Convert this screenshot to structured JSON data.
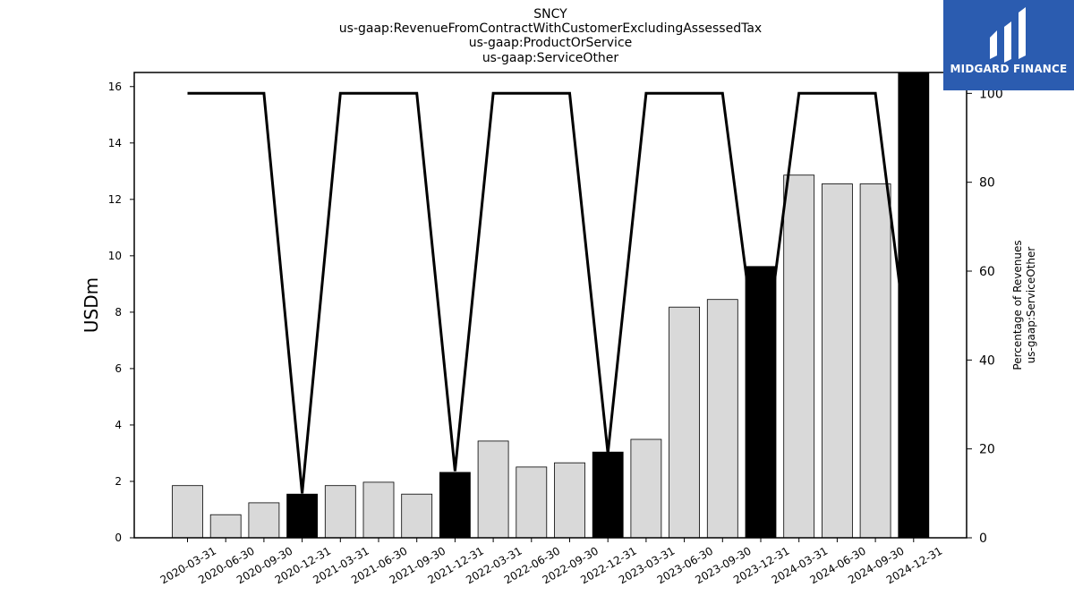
{
  "chart_data": {
    "type": "bar",
    "title_lines": [
      "SNCY",
      "us-gaap:RevenueFromContractWithCustomerExcludingAssessedTax",
      "us-gaap:ProductOrService",
      "us-gaap:ServiceOther"
    ],
    "ylabel": "USDm",
    "y2label_lines": [
      "Percentage of Revenues",
      "us-gaap:ServiceOther"
    ],
    "categories": [
      "2020-03-31",
      "2020-06-30",
      "2020-09-30",
      "2020-12-31",
      "2021-03-31",
      "2021-06-30",
      "2021-09-30",
      "2021-12-31",
      "2022-03-31",
      "2022-06-30",
      "2022-09-30",
      "2022-12-31",
      "2023-03-31",
      "2023-06-30",
      "2023-09-30",
      "2023-12-31",
      "2024-03-31",
      "2024-06-30",
      "2024-09-30",
      "2024-12-31"
    ],
    "values": [
      1.85,
      0.82,
      1.24,
      1.55,
      1.85,
      1.97,
      1.55,
      2.32,
      3.43,
      2.51,
      2.66,
      3.04,
      3.49,
      8.18,
      8.45,
      9.62,
      12.86,
      12.55,
      12.55,
      16.6
    ],
    "highlight": [
      false,
      false,
      false,
      true,
      false,
      false,
      false,
      true,
      false,
      false,
      false,
      true,
      false,
      false,
      false,
      true,
      false,
      false,
      false,
      true
    ],
    "percentages": [
      100,
      100,
      100,
      10,
      100,
      100,
      100,
      15,
      100,
      100,
      100,
      19,
      100,
      100,
      100,
      34,
      100,
      100,
      100,
      32
    ],
    "ylim": [
      0,
      16.5
    ],
    "yticks": [
      0,
      2,
      4,
      6,
      8,
      10,
      12,
      14,
      16
    ],
    "y2lim": [
      0,
      104.7
    ],
    "y2ticks": [
      0,
      20,
      40,
      60,
      80,
      100
    ],
    "colors": {
      "bar": "#d9d9d9",
      "highlight": "#000000",
      "line": "#000000"
    },
    "grid": false
  },
  "logo": {
    "text": "MIDGARD FINANCE"
  }
}
